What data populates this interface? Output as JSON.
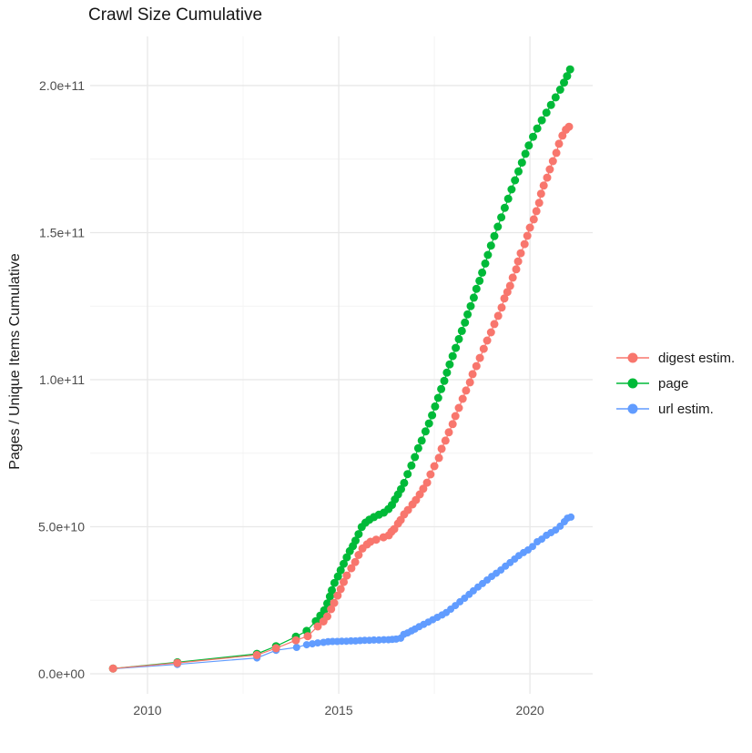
{
  "figure": {
    "title": "Crawl Size Cumulative",
    "background": "#ffffff"
  },
  "axes": {
    "y_title": "Pages / Unique Items Cumulative",
    "x_ticks": [
      {
        "value": 2010,
        "label": "2010"
      },
      {
        "value": 2015,
        "label": "2015"
      },
      {
        "value": 2020,
        "label": "2020"
      }
    ],
    "x_minor_ticks": [
      2012.5,
      2017.5
    ],
    "y_ticks": [
      {
        "value": 0,
        "label": "0.0e+00"
      },
      {
        "value": 50,
        "label": "5.0e+10"
      },
      {
        "value": 100,
        "label": "1.0e+11"
      },
      {
        "value": 150,
        "label": "1.5e+11"
      },
      {
        "value": 200,
        "label": "2.0e+11"
      }
    ],
    "y_minor_ticks": [
      25,
      75,
      125,
      175
    ],
    "tick_label_color": "#4d4d4d",
    "grid_major_color": "#e8e8e8",
    "grid_minor_color": "#f4f4f4"
  },
  "legend": {
    "items": [
      {
        "label": "digest estim.",
        "color": "#F8766D"
      },
      {
        "label": "page",
        "color": "#00BA38"
      },
      {
        "label": "url estim.",
        "color": "#619CFF"
      }
    ]
  },
  "chart_data": {
    "type": "line",
    "subtype": "line-with-points",
    "title": "Crawl Size Cumulative",
    "xlabel": "",
    "ylabel": "Pages / Unique Items Cumulative",
    "x_unit": "year (decimal)",
    "y_unit": "pages / unique items (values in billions, multiply by 1e9)",
    "y_value_scale": 1000000000,
    "x_range": [
      2008.5,
      2021.64
    ],
    "y_range_billions": [
      -6.8,
      216.7
    ],
    "xlim": [
      2009.1,
      2021.07
    ],
    "ylim_billions": [
      0,
      216.7
    ],
    "grid": true,
    "legend_position": "right",
    "draw_order": [
      2,
      1,
      0
    ],
    "series": [
      {
        "name": "digest estim.",
        "color": "#F8766D",
        "point_radius": 4.5,
        "points": [
          [
            2009.1,
            1.8
          ],
          [
            2010.78,
            3.7
          ],
          [
            2012.86,
            6.4
          ],
          [
            2013.36,
            8.7
          ],
          [
            2013.88,
            11.4
          ],
          [
            2014.19,
            12.8
          ],
          [
            2014.45,
            16.1
          ],
          [
            2014.6,
            17.8
          ],
          [
            2014.7,
            19.5
          ],
          [
            2014.8,
            22.0
          ],
          [
            2014.88,
            24.1
          ],
          [
            2014.97,
            26.6
          ],
          [
            2015.05,
            28.8
          ],
          [
            2015.13,
            31.2
          ],
          [
            2015.21,
            33.4
          ],
          [
            2015.33,
            35.9
          ],
          [
            2015.43,
            38.0
          ],
          [
            2015.52,
            40.4
          ],
          [
            2015.62,
            42.6
          ],
          [
            2015.74,
            44.0
          ],
          [
            2015.83,
            44.9
          ],
          [
            2015.98,
            45.6
          ],
          [
            2016.17,
            46.4
          ],
          [
            2016.31,
            47.1
          ],
          [
            2016.38,
            48.3
          ],
          [
            2016.45,
            49.2
          ],
          [
            2016.55,
            51.1
          ],
          [
            2016.62,
            52.3
          ],
          [
            2016.71,
            54.2
          ],
          [
            2016.81,
            55.7
          ],
          [
            2016.93,
            57.6
          ],
          [
            2017.02,
            59.1
          ],
          [
            2017.12,
            61.0
          ],
          [
            2017.21,
            62.9
          ],
          [
            2017.31,
            65.0
          ],
          [
            2017.4,
            67.8
          ],
          [
            2017.5,
            70.6
          ],
          [
            2017.62,
            73.4
          ],
          [
            2017.69,
            76.5
          ],
          [
            2017.79,
            79.3
          ],
          [
            2017.88,
            82.1
          ],
          [
            2017.98,
            84.9
          ],
          [
            2018.05,
            87.6
          ],
          [
            2018.14,
            90.4
          ],
          [
            2018.24,
            93.5
          ],
          [
            2018.33,
            96.3
          ],
          [
            2018.43,
            99.1
          ],
          [
            2018.5,
            101.9
          ],
          [
            2018.6,
            104.6
          ],
          [
            2018.69,
            107.4
          ],
          [
            2018.79,
            110.5
          ],
          [
            2018.88,
            113.3
          ],
          [
            2018.98,
            116.1
          ],
          [
            2019.07,
            118.9
          ],
          [
            2019.17,
            121.7
          ],
          [
            2019.26,
            124.5
          ],
          [
            2019.33,
            127.6
          ],
          [
            2019.41,
            129.8
          ],
          [
            2019.48,
            131.9
          ],
          [
            2019.55,
            134.7
          ],
          [
            2019.64,
            137.5
          ],
          [
            2019.69,
            140.2
          ],
          [
            2019.76,
            143.0
          ],
          [
            2019.86,
            146.1
          ],
          [
            2019.93,
            148.9
          ],
          [
            2020.0,
            151.7
          ],
          [
            2020.1,
            154.5
          ],
          [
            2020.17,
            157.3
          ],
          [
            2020.24,
            160.1
          ],
          [
            2020.29,
            163.2
          ],
          [
            2020.36,
            166.0
          ],
          [
            2020.45,
            168.7
          ],
          [
            2020.52,
            171.5
          ],
          [
            2020.6,
            174.3
          ],
          [
            2020.69,
            177.1
          ],
          [
            2020.76,
            180.2
          ],
          [
            2020.85,
            183.0
          ],
          [
            2020.94,
            185.0
          ],
          [
            2021.02,
            186.0
          ]
        ]
      },
      {
        "name": "page",
        "color": "#00BA38",
        "point_radius": 4.5,
        "points": [
          [
            2009.1,
            1.8
          ],
          [
            2010.78,
            3.9
          ],
          [
            2012.86,
            6.8
          ],
          [
            2013.36,
            9.4
          ],
          [
            2013.88,
            12.6
          ],
          [
            2014.16,
            14.6
          ],
          [
            2014.4,
            17.9
          ],
          [
            2014.52,
            19.8
          ],
          [
            2014.62,
            21.6
          ],
          [
            2014.7,
            23.9
          ],
          [
            2014.77,
            26.3
          ],
          [
            2014.82,
            28.4
          ],
          [
            2014.89,
            30.9
          ],
          [
            2014.98,
            33.1
          ],
          [
            2015.05,
            35.2
          ],
          [
            2015.13,
            37.4
          ],
          [
            2015.21,
            39.6
          ],
          [
            2015.29,
            41.7
          ],
          [
            2015.37,
            43.4
          ],
          [
            2015.44,
            45.3
          ],
          [
            2015.52,
            47.5
          ],
          [
            2015.6,
            49.9
          ],
          [
            2015.7,
            51.4
          ],
          [
            2015.8,
            52.4
          ],
          [
            2015.92,
            53.3
          ],
          [
            2016.05,
            54.1
          ],
          [
            2016.18,
            54.8
          ],
          [
            2016.3,
            56.0
          ],
          [
            2016.39,
            57.4
          ],
          [
            2016.47,
            59.3
          ],
          [
            2016.55,
            61.0
          ],
          [
            2016.63,
            62.8
          ],
          [
            2016.71,
            64.9
          ],
          [
            2016.8,
            67.9
          ],
          [
            2016.9,
            70.8
          ],
          [
            2016.99,
            73.7
          ],
          [
            2017.08,
            76.7
          ],
          [
            2017.17,
            79.3
          ],
          [
            2017.27,
            82.4
          ],
          [
            2017.36,
            85.1
          ],
          [
            2017.44,
            87.9
          ],
          [
            2017.52,
            90.9
          ],
          [
            2017.6,
            93.8
          ],
          [
            2017.68,
            96.8
          ],
          [
            2017.76,
            99.6
          ],
          [
            2017.83,
            102.4
          ],
          [
            2017.9,
            105.2
          ],
          [
            2017.98,
            108.0
          ],
          [
            2018.06,
            110.8
          ],
          [
            2018.14,
            113.8
          ],
          [
            2018.22,
            116.6
          ],
          [
            2018.3,
            119.4
          ],
          [
            2018.37,
            122.2
          ],
          [
            2018.45,
            125.0
          ],
          [
            2018.53,
            127.9
          ],
          [
            2018.6,
            130.9
          ],
          [
            2018.68,
            133.6
          ],
          [
            2018.75,
            136.4
          ],
          [
            2018.83,
            139.5
          ],
          [
            2018.9,
            142.4
          ],
          [
            2018.98,
            145.6
          ],
          [
            2019.07,
            148.8
          ],
          [
            2019.16,
            152.0
          ],
          [
            2019.25,
            155.2
          ],
          [
            2019.34,
            158.4
          ],
          [
            2019.43,
            161.5
          ],
          [
            2019.52,
            164.7
          ],
          [
            2019.61,
            167.8
          ],
          [
            2019.7,
            170.8
          ],
          [
            2019.79,
            173.8
          ],
          [
            2019.88,
            176.8
          ],
          [
            2019.97,
            179.6
          ],
          [
            2020.08,
            182.6
          ],
          [
            2020.19,
            185.4
          ],
          [
            2020.31,
            188.2
          ],
          [
            2020.43,
            190.8
          ],
          [
            2020.55,
            193.4
          ],
          [
            2020.67,
            196.0
          ],
          [
            2020.79,
            198.6
          ],
          [
            2020.89,
            201.0
          ],
          [
            2020.97,
            203.2
          ],
          [
            2021.05,
            205.5
          ]
        ]
      },
      {
        "name": "url estim.",
        "color": "#619CFF",
        "point_radius": 4.0,
        "points": [
          [
            2009.1,
            1.7
          ],
          [
            2010.78,
            3.2
          ],
          [
            2012.86,
            5.4
          ],
          [
            2013.36,
            8.0
          ],
          [
            2013.9,
            9.0
          ],
          [
            2014.16,
            9.9
          ],
          [
            2014.31,
            10.2
          ],
          [
            2014.45,
            10.5
          ],
          [
            2014.6,
            10.7
          ],
          [
            2014.72,
            10.9
          ],
          [
            2014.84,
            11.0
          ],
          [
            2014.96,
            11.0
          ],
          [
            2015.08,
            11.1
          ],
          [
            2015.2,
            11.1
          ],
          [
            2015.32,
            11.2
          ],
          [
            2015.44,
            11.2
          ],
          [
            2015.56,
            11.3
          ],
          [
            2015.68,
            11.4
          ],
          [
            2015.8,
            11.4
          ],
          [
            2015.92,
            11.5
          ],
          [
            2016.05,
            11.5
          ],
          [
            2016.18,
            11.6
          ],
          [
            2016.3,
            11.6
          ],
          [
            2016.4,
            11.7
          ],
          [
            2016.5,
            11.8
          ],
          [
            2016.62,
            12.1
          ],
          [
            2016.7,
            13.4
          ],
          [
            2016.8,
            13.9
          ],
          [
            2016.9,
            14.6
          ],
          [
            2016.99,
            15.2
          ],
          [
            2017.1,
            16.0
          ],
          [
            2017.22,
            16.8
          ],
          [
            2017.34,
            17.6
          ],
          [
            2017.46,
            18.4
          ],
          [
            2017.58,
            19.2
          ],
          [
            2017.7,
            20.0
          ],
          [
            2017.81,
            20.8
          ],
          [
            2017.93,
            22.0
          ],
          [
            2018.05,
            23.2
          ],
          [
            2018.17,
            24.5
          ],
          [
            2018.29,
            25.7
          ],
          [
            2018.41,
            27.0
          ],
          [
            2018.52,
            28.2
          ],
          [
            2018.64,
            29.5
          ],
          [
            2018.76,
            30.7
          ],
          [
            2018.88,
            31.9
          ],
          [
            2019.0,
            33.1
          ],
          [
            2019.12,
            34.2
          ],
          [
            2019.24,
            35.3
          ],
          [
            2019.36,
            36.6
          ],
          [
            2019.48,
            37.8
          ],
          [
            2019.6,
            39.0
          ],
          [
            2019.71,
            40.2
          ],
          [
            2019.83,
            41.2
          ],
          [
            2019.95,
            42.1
          ],
          [
            2020.07,
            43.3
          ],
          [
            2020.19,
            44.9
          ],
          [
            2020.31,
            45.8
          ],
          [
            2020.43,
            47.1
          ],
          [
            2020.55,
            48.0
          ],
          [
            2020.67,
            48.9
          ],
          [
            2020.79,
            50.2
          ],
          [
            2020.9,
            51.7
          ],
          [
            2020.98,
            52.9
          ],
          [
            2021.07,
            53.3
          ]
        ]
      }
    ]
  }
}
